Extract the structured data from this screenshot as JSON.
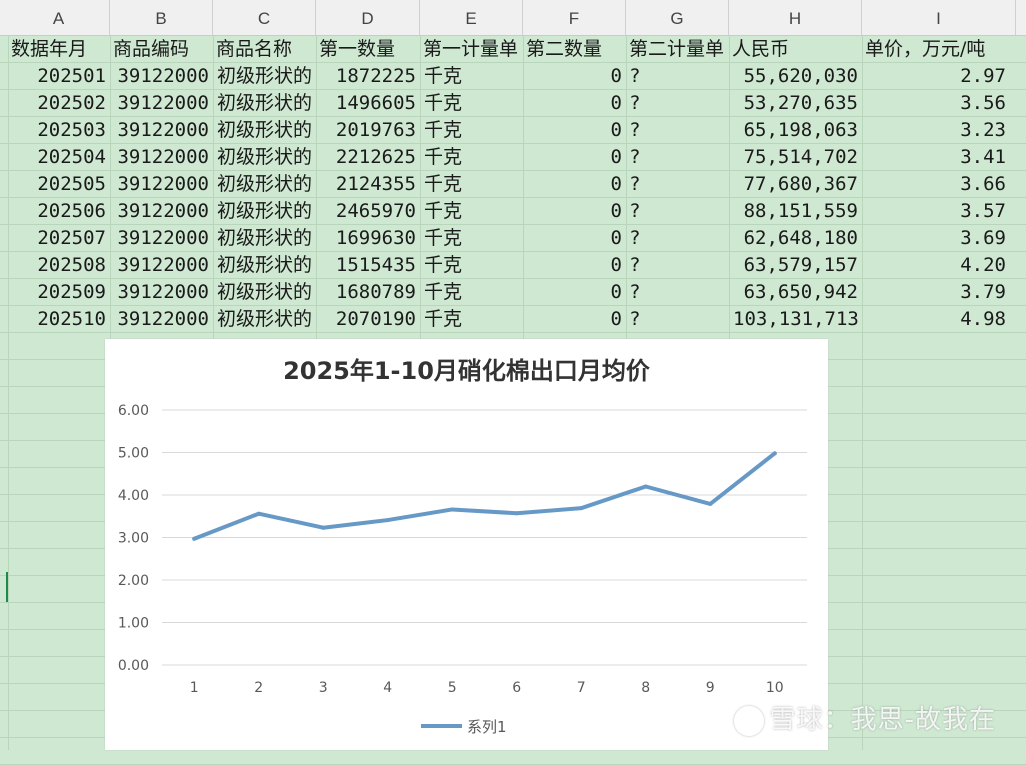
{
  "columns": [
    "A",
    "B",
    "C",
    "D",
    "E",
    "F",
    "G",
    "H",
    "I"
  ],
  "table": {
    "headers": [
      "数据年月",
      "商品编码",
      "商品名称",
      "第一数量",
      "第一计量单",
      "第二数量",
      "第二计量单",
      "人民币",
      "单价，万元/吨"
    ],
    "rows": [
      [
        "202501",
        "39122000",
        "初级形状的",
        "1872225",
        "千克",
        "0",
        "?",
        "55,620,030",
        "2.97"
      ],
      [
        "202502",
        "39122000",
        "初级形状的",
        "1496605",
        "千克",
        "0",
        "?",
        "53,270,635",
        "3.56"
      ],
      [
        "202503",
        "39122000",
        "初级形状的",
        "2019763",
        "千克",
        "0",
        "?",
        "65,198,063",
        "3.23"
      ],
      [
        "202504",
        "39122000",
        "初级形状的",
        "2212625",
        "千克",
        "0",
        "?",
        "75,514,702",
        "3.41"
      ],
      [
        "202505",
        "39122000",
        "初级形状的",
        "2124355",
        "千克",
        "0",
        "?",
        "77,680,367",
        "3.66"
      ],
      [
        "202506",
        "39122000",
        "初级形状的",
        "2465970",
        "千克",
        "0",
        "?",
        "88,151,559",
        "3.57"
      ],
      [
        "202507",
        "39122000",
        "初级形状的",
        "1699630",
        "千克",
        "0",
        "?",
        "62,648,180",
        "3.69"
      ],
      [
        "202508",
        "39122000",
        "初级形状的",
        "1515435",
        "千克",
        "0",
        "?",
        "63,579,157",
        "4.20"
      ],
      [
        "202509",
        "39122000",
        "初级形状的",
        "1680789",
        "千克",
        "0",
        "?",
        "63,650,942",
        "3.79"
      ],
      [
        "202510",
        "39122000",
        "初级形状的",
        "2070190",
        "千克",
        "0",
        "?",
        "103,131,713",
        "4.98"
      ]
    ]
  },
  "chart_data": {
    "type": "line",
    "title": "2025年1-10月硝化棉出口月均价",
    "categories": [
      "1",
      "2",
      "3",
      "4",
      "5",
      "6",
      "7",
      "8",
      "9",
      "10"
    ],
    "series": [
      {
        "name": "系列1",
        "values": [
          2.97,
          3.56,
          3.23,
          3.41,
          3.66,
          3.57,
          3.69,
          4.2,
          3.79,
          4.98
        ],
        "color": "#6799c6"
      }
    ],
    "yticks": [
      "0.00",
      "1.00",
      "2.00",
      "3.00",
      "4.00",
      "5.00",
      "6.00"
    ],
    "ylim": [
      0,
      6
    ],
    "grid": true,
    "legend": "bottom"
  },
  "watermark": "雪球：我思-故我在",
  "colors": {
    "sheet_bg": "#cfe8d2",
    "header_bg": "#f0f0f0",
    "line": "#6799c6"
  }
}
